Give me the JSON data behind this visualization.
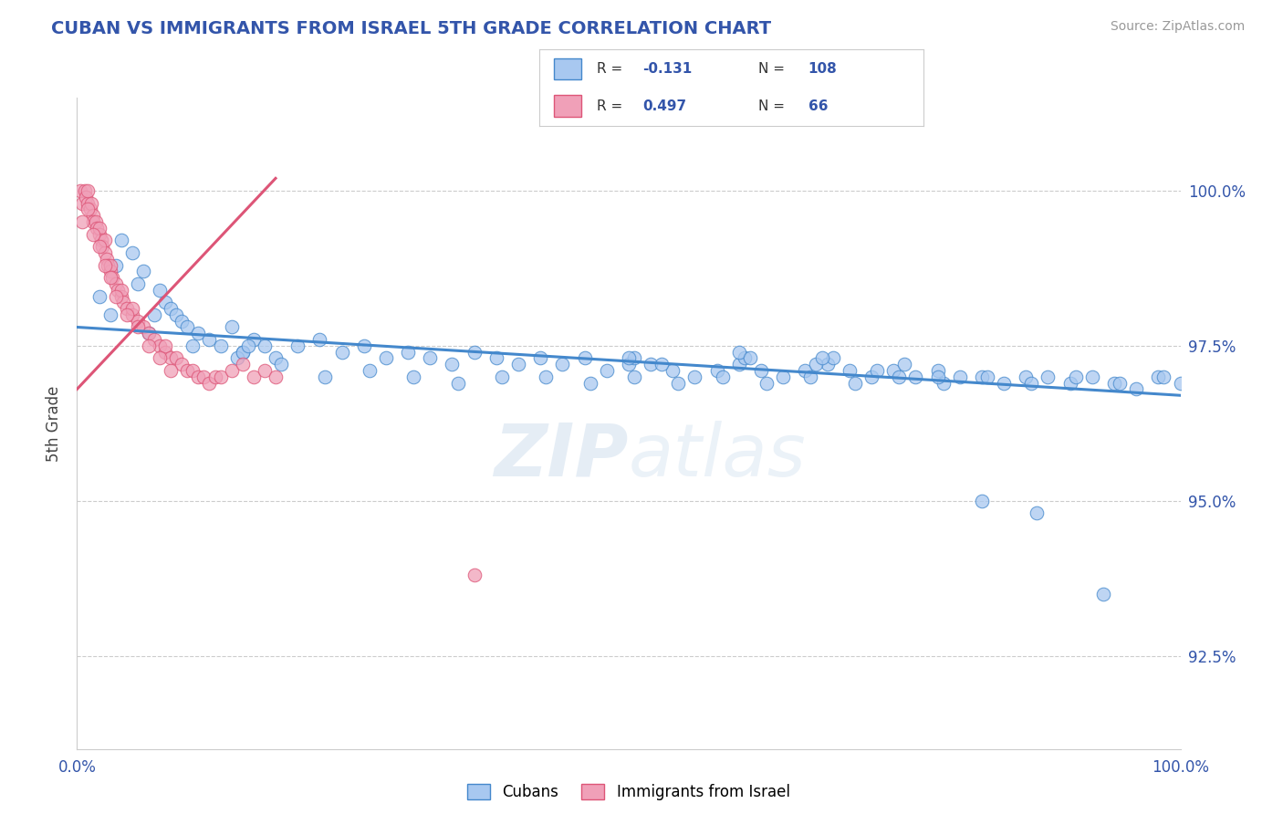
{
  "title": "CUBAN VS IMMIGRANTS FROM ISRAEL 5TH GRADE CORRELATION CHART",
  "source": "Source: ZipAtlas.com",
  "ylabel": "5th Grade",
  "xlim": [
    0,
    100
  ],
  "ylim": [
    91.0,
    101.5
  ],
  "yticks_right": [
    92.5,
    95.0,
    97.5,
    100.0
  ],
  "ytick_labels_right": [
    "92.5%",
    "95.0%",
    "97.5%",
    "100.0%"
  ],
  "color_blue": "#a8c8f0",
  "color_pink": "#f0a0b8",
  "color_blue_line": "#4488cc",
  "color_pink_line": "#dd5577",
  "color_title": "#3355aa",
  "color_axis_text": "#3355aa",
  "legend_label1": "Cubans",
  "legend_label2": "Immigrants from Israel",
  "blue_scatter_x": [
    2.0,
    3.5,
    4.0,
    5.0,
    5.5,
    6.0,
    7.0,
    7.5,
    8.0,
    8.5,
    9.0,
    9.5,
    10.0,
    11.0,
    12.0,
    13.0,
    14.0,
    15.0,
    16.0,
    17.0,
    18.0,
    20.0,
    22.0,
    24.0,
    26.0,
    28.0,
    30.0,
    32.0,
    34.0,
    36.0,
    38.0,
    40.0,
    42.0,
    44.0,
    46.0,
    48.0,
    50.0,
    50.5,
    52.0,
    54.0,
    56.0,
    58.0,
    60.0,
    60.5,
    62.0,
    64.0,
    66.0,
    68.0,
    68.5,
    70.0,
    72.0,
    74.0,
    75.0,
    76.0,
    78.0,
    80.0,
    82.0,
    84.0,
    86.0,
    88.0,
    90.0,
    92.0,
    94.0,
    96.0,
    98.0,
    100.0,
    3.0,
    6.5,
    10.5,
    14.5,
    18.5,
    22.5,
    26.5,
    30.5,
    34.5,
    38.5,
    42.5,
    46.5,
    50.5,
    54.5,
    58.5,
    62.5,
    66.5,
    70.5,
    74.5,
    78.5,
    82.5,
    86.5,
    90.5,
    94.5,
    98.5,
    15.0,
    15.5,
    50.0,
    53.0,
    60.0,
    61.0,
    67.0,
    67.5,
    72.5,
    78.0,
    82.0,
    87.0,
    93.0
  ],
  "blue_scatter_y": [
    98.3,
    98.8,
    99.2,
    99.0,
    98.5,
    98.7,
    98.0,
    98.4,
    98.2,
    98.1,
    98.0,
    97.9,
    97.8,
    97.7,
    97.6,
    97.5,
    97.8,
    97.4,
    97.6,
    97.5,
    97.3,
    97.5,
    97.6,
    97.4,
    97.5,
    97.3,
    97.4,
    97.3,
    97.2,
    97.4,
    97.3,
    97.2,
    97.3,
    97.2,
    97.3,
    97.1,
    97.2,
    97.3,
    97.2,
    97.1,
    97.0,
    97.1,
    97.2,
    97.3,
    97.1,
    97.0,
    97.1,
    97.2,
    97.3,
    97.1,
    97.0,
    97.1,
    97.2,
    97.0,
    97.1,
    97.0,
    97.0,
    96.9,
    97.0,
    97.0,
    96.9,
    97.0,
    96.9,
    96.8,
    97.0,
    96.9,
    98.0,
    97.7,
    97.5,
    97.3,
    97.2,
    97.0,
    97.1,
    97.0,
    96.9,
    97.0,
    97.0,
    96.9,
    97.0,
    96.9,
    97.0,
    96.9,
    97.0,
    96.9,
    97.0,
    96.9,
    97.0,
    96.9,
    97.0,
    96.9,
    97.0,
    97.4,
    97.5,
    97.3,
    97.2,
    97.4,
    97.3,
    97.2,
    97.3,
    97.1,
    97.0,
    95.0,
    94.8,
    93.5
  ],
  "pink_scatter_x": [
    0.3,
    0.5,
    0.7,
    0.8,
    1.0,
    1.0,
    1.2,
    1.3,
    1.5,
    1.5,
    1.7,
    1.8,
    2.0,
    2.0,
    2.2,
    2.3,
    2.5,
    2.5,
    2.7,
    2.8,
    3.0,
    3.0,
    3.2,
    3.5,
    3.7,
    4.0,
    4.0,
    4.2,
    4.5,
    5.0,
    5.0,
    5.5,
    6.0,
    6.5,
    7.0,
    7.5,
    8.0,
    8.0,
    8.5,
    9.0,
    9.5,
    10.0,
    10.5,
    11.0,
    11.5,
    12.0,
    12.5,
    13.0,
    14.0,
    15.0,
    16.0,
    17.0,
    18.0,
    0.5,
    1.0,
    1.5,
    2.0,
    2.5,
    3.0,
    3.5,
    4.5,
    5.5,
    6.5,
    7.5,
    8.5,
    36.0
  ],
  "pink_scatter_y": [
    100.0,
    99.8,
    100.0,
    99.9,
    99.8,
    100.0,
    99.7,
    99.8,
    99.6,
    99.5,
    99.5,
    99.4,
    99.3,
    99.4,
    99.2,
    99.1,
    99.0,
    99.2,
    98.9,
    98.8,
    98.7,
    98.8,
    98.6,
    98.5,
    98.4,
    98.3,
    98.4,
    98.2,
    98.1,
    98.0,
    98.1,
    97.9,
    97.8,
    97.7,
    97.6,
    97.5,
    97.4,
    97.5,
    97.3,
    97.3,
    97.2,
    97.1,
    97.1,
    97.0,
    97.0,
    96.9,
    97.0,
    97.0,
    97.1,
    97.2,
    97.0,
    97.1,
    97.0,
    99.5,
    99.7,
    99.3,
    99.1,
    98.8,
    98.6,
    98.3,
    98.0,
    97.8,
    97.5,
    97.3,
    97.1,
    93.8
  ],
  "blue_trend_x": [
    0,
    100
  ],
  "blue_trend_y": [
    97.8,
    96.7
  ],
  "pink_trend_x": [
    0,
    18
  ],
  "pink_trend_y": [
    96.8,
    100.2
  ],
  "gridline_color": "#cccccc",
  "gridline_style": "--",
  "background_color": "#ffffff",
  "fig_width": 14.06,
  "fig_height": 8.92,
  "dpi": 100
}
